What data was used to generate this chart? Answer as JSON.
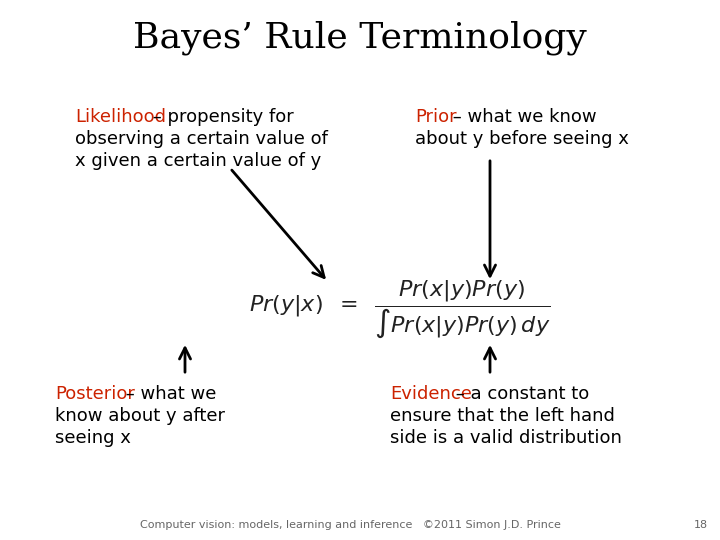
{
  "title": "Bayes’ Rule Terminology",
  "title_fontsize": 26,
  "title_color": "#000000",
  "background_color": "#ffffff",
  "likelihood_label": "Likelihood",
  "likelihood_label_color": "#cc2200",
  "likelihood_line1": " – propensity for",
  "likelihood_line2": "observing a certain value of",
  "likelihood_line3": "x given a certain value of y",
  "prior_label": "Prior",
  "prior_label_color": "#cc2200",
  "prior_line1": " – what we know",
  "prior_line2": "about y before seeing x",
  "posterior_label": "Posterior",
  "posterior_label_color": "#cc2200",
  "posterior_line1": " – what we",
  "posterior_line2": "know about y after",
  "posterior_line3": "seeing x",
  "evidence_label": "Evidence",
  "evidence_label_color": "#cc2200",
  "evidence_line1": " – a constant to",
  "evidence_line2": "ensure that the left hand",
  "evidence_line3": "side is a valid distribution",
  "text_color": "#000000",
  "text_fontsize": 13,
  "footer_text": "Computer vision: models, learning and inference   ©2011 Simon J.D. Prince",
  "footer_page": "18",
  "footer_fontsize": 8,
  "footer_color": "#666666"
}
